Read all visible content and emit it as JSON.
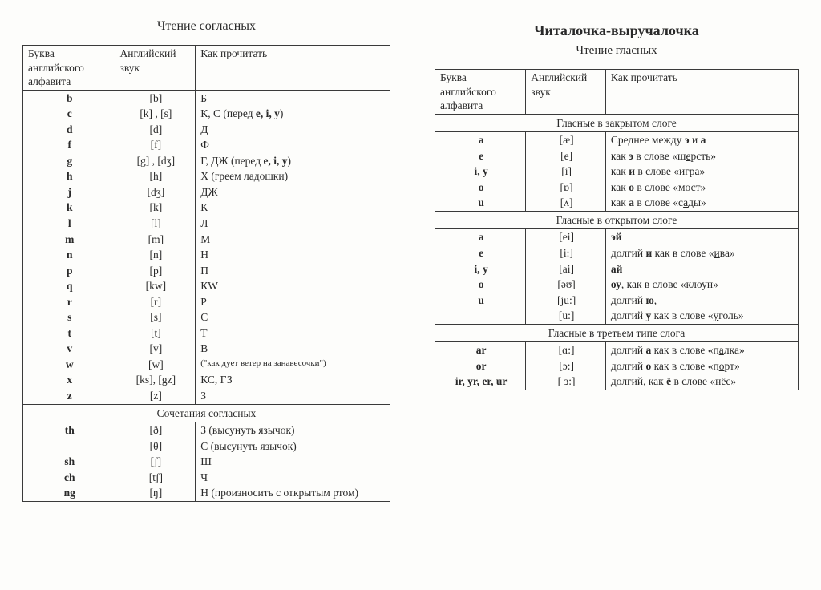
{
  "left": {
    "title": "Чтение согласных",
    "headers": {
      "c1": "Буква английского алфавита",
      "c2": "Английский звук",
      "c3": "Как прочитать"
    },
    "consonants": [
      {
        "l": "b",
        "s": "[b]",
        "r": "Б"
      },
      {
        "l": "c",
        "s": "[k] , [s]",
        "r": "К,  С (перед <b>e, i, y</b>)"
      },
      {
        "l": "d",
        "s": "[d]",
        "r": "Д"
      },
      {
        "l": "f",
        "s": "[f]",
        "r": "Ф"
      },
      {
        "l": "g",
        "s": "[g] , [dʒ]",
        "r": "Г,  ДЖ (перед <b>e, i, y</b>)"
      },
      {
        "l": "h",
        "s": "[h]",
        "r": "Х (греем ладошки)"
      },
      {
        "l": "j",
        "s": "[dʒ]",
        "r": "ДЖ"
      },
      {
        "l": "k",
        "s": "[k]",
        "r": "К"
      },
      {
        "l": "l",
        "s": "[l]",
        "r": "Л"
      },
      {
        "l": "m",
        "s": "[m]",
        "r": "М"
      },
      {
        "l": "n",
        "s": "[n]",
        "r": "Н"
      },
      {
        "l": "p",
        "s": "[p]",
        "r": "П"
      },
      {
        "l": "q",
        "s": "[kw]",
        "r": "КW"
      },
      {
        "l": "r",
        "s": "[r]",
        "r": "Р"
      },
      {
        "l": "s",
        "s": "[s]",
        "r": "С"
      },
      {
        "l": "t",
        "s": "[t]",
        "r": "Т"
      },
      {
        "l": "v",
        "s": "[v]",
        "r": "В"
      },
      {
        "l": "w",
        "s": "[w]",
        "r": "(\"как дует ветер на занавесочки\")",
        "small": true
      },
      {
        "l": "x",
        "s": "[ks], [gz]",
        "r": "КС, ГЗ"
      },
      {
        "l": "z",
        "s": "[z]",
        "r": "З"
      }
    ],
    "comboTitle": "Сочетания согласных",
    "combos": [
      {
        "l": "th",
        "s": "[ð]",
        "r": "З (высунуть язычок)"
      },
      {
        "l": "",
        "s": "[θ]",
        "r": "С (высунуть язычок)"
      },
      {
        "l": "sh",
        "s": "[ʃ]",
        "r": "Ш"
      },
      {
        "l": "ch",
        "s": "[tʃ]",
        "r": "Ч"
      },
      {
        "l": "ng",
        "s": "[ŋ]",
        "r": "Н (произносить с открытым ртом)"
      }
    ]
  },
  "right": {
    "bigTitle": "Читалочка-выручалочка",
    "subTitle": "Чтение гласных",
    "headers": {
      "c1": "Буква английского алфавита",
      "c2": "Английский звук",
      "c3": "Как прочитать"
    },
    "sec1Title": "Гласные в закрытом слоге",
    "sec1": [
      {
        "l": "a",
        "s": "[æ]",
        "r": "Среднее между <b>э</b> и <b>а</b>"
      },
      {
        "l": "e",
        "s": "[e]",
        "r": "как <b>э</b> в слове «ш<u>е</u>рсть»"
      },
      {
        "l": "i, y",
        "s": "[i]",
        "r": "как <b>и</b> в слове «<u>и</u>гра»"
      },
      {
        "l": "o",
        "s": "[ɒ]",
        "r": "как <b>о</b> в слове «м<u>о</u>ст»"
      },
      {
        "l": "u",
        "s": "[ʌ]",
        "r": "как <b>а</b> в слове «с<u>а</u>ды»"
      }
    ],
    "sec2Title": "Гласные в открытом слоге",
    "sec2": [
      {
        "l": "a",
        "s": "[ei]",
        "r": "<b>эй</b>"
      },
      {
        "l": "e",
        "s": "[i:]",
        "r": "долгий <b>и</b> как в слове «<u>и</u>ва»"
      },
      {
        "l": "i, y",
        "s": "[ai]",
        "r": "<b>ай</b>"
      },
      {
        "l": "o",
        "s": "[əʊ]",
        "r": "<b>оу</b>, как в слове «кл<u>оу</u>н»"
      },
      {
        "l": "u",
        "s": "[ju:]",
        "r": "долгий <b>ю</b>,"
      },
      {
        "l": "",
        "s": "[u:]",
        "r": "долгий <b>у</b> как в слове «<u>у</u>голь»"
      }
    ],
    "sec3Title": "Гласные в третьем типе слога",
    "sec3": [
      {
        "l": "ar",
        "s": "[ɑ:]",
        "r": "долгий <b>а</b> как в слове «п<u>а</u>лка»"
      },
      {
        "l": "or",
        "s": "[ɔ:]",
        "r": "долгий <b>о</b> как в слове «п<u>о</u>рт»"
      },
      {
        "l": "ir, yr, er, ur",
        "s": "[ ɜ:]",
        "r": "долгий, как <b>ё</b> в слове «н<u>ё</u>с»"
      }
    ]
  }
}
